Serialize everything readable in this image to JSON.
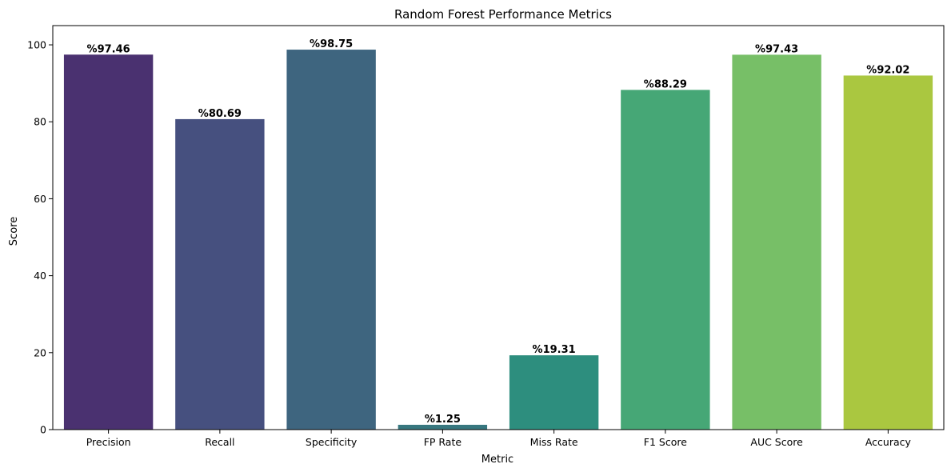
{
  "chart_data": {
    "type": "bar",
    "title": "Random Forest Performance Metrics",
    "xlabel": "Metric",
    "ylabel": "Score",
    "ylim": [
      0,
      105
    ],
    "yticks": [
      0,
      20,
      40,
      60,
      80,
      100
    ],
    "grid": false,
    "categories": [
      "Precision",
      "Recall",
      "Specificity",
      "FP Rate",
      "Miss Rate",
      "F1 Score",
      "AUC Score",
      "Accuracy"
    ],
    "values": [
      97.46,
      80.69,
      98.75,
      1.25,
      19.31,
      88.29,
      97.43,
      92.02
    ],
    "data_labels": [
      "%97.46",
      "%80.69",
      "%98.75",
      "%1.25",
      "%19.31",
      "%88.29",
      "%97.43",
      "%92.02"
    ],
    "colors": [
      "#4a3170",
      "#46507f",
      "#3e657f",
      "#37777f",
      "#2d8e7e",
      "#46a776",
      "#77bf67",
      "#aac740"
    ]
  }
}
